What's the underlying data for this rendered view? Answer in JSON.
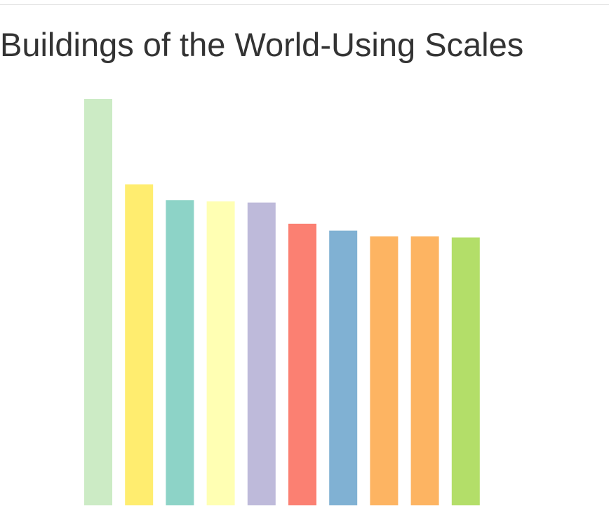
{
  "chart_data": {
    "type": "bar",
    "title": "Buildings of the World-Using Scales",
    "xlabel": "",
    "ylabel": "",
    "grid": false,
    "legend": "none",
    "ylim": [
      0,
      100
    ],
    "values": [
      100,
      79,
      75.1,
      74.8,
      74.5,
      69.3,
      67.6,
      66.2,
      66.2,
      65.9
    ],
    "colors": [
      "#ccebc5",
      "#ffed6f",
      "#8dd3c7",
      "#ffffb3",
      "#bebada",
      "#fb8072",
      "#80b1d3",
      "#fdb462",
      "#fdb462",
      "#b3de69"
    ]
  }
}
